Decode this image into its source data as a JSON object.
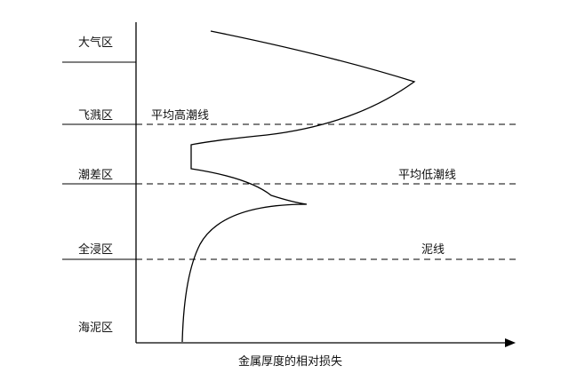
{
  "zones": [
    "大气区",
    "飞溅区",
    "潮差区",
    "全浸区",
    "海泥区"
  ],
  "lines": {
    "mean_high_tide": "平均高潮线",
    "mean_low_tide": "平均低潮线",
    "mud_line": "泥线"
  },
  "x_axis_label": "金属厚度的相对损失"
}
